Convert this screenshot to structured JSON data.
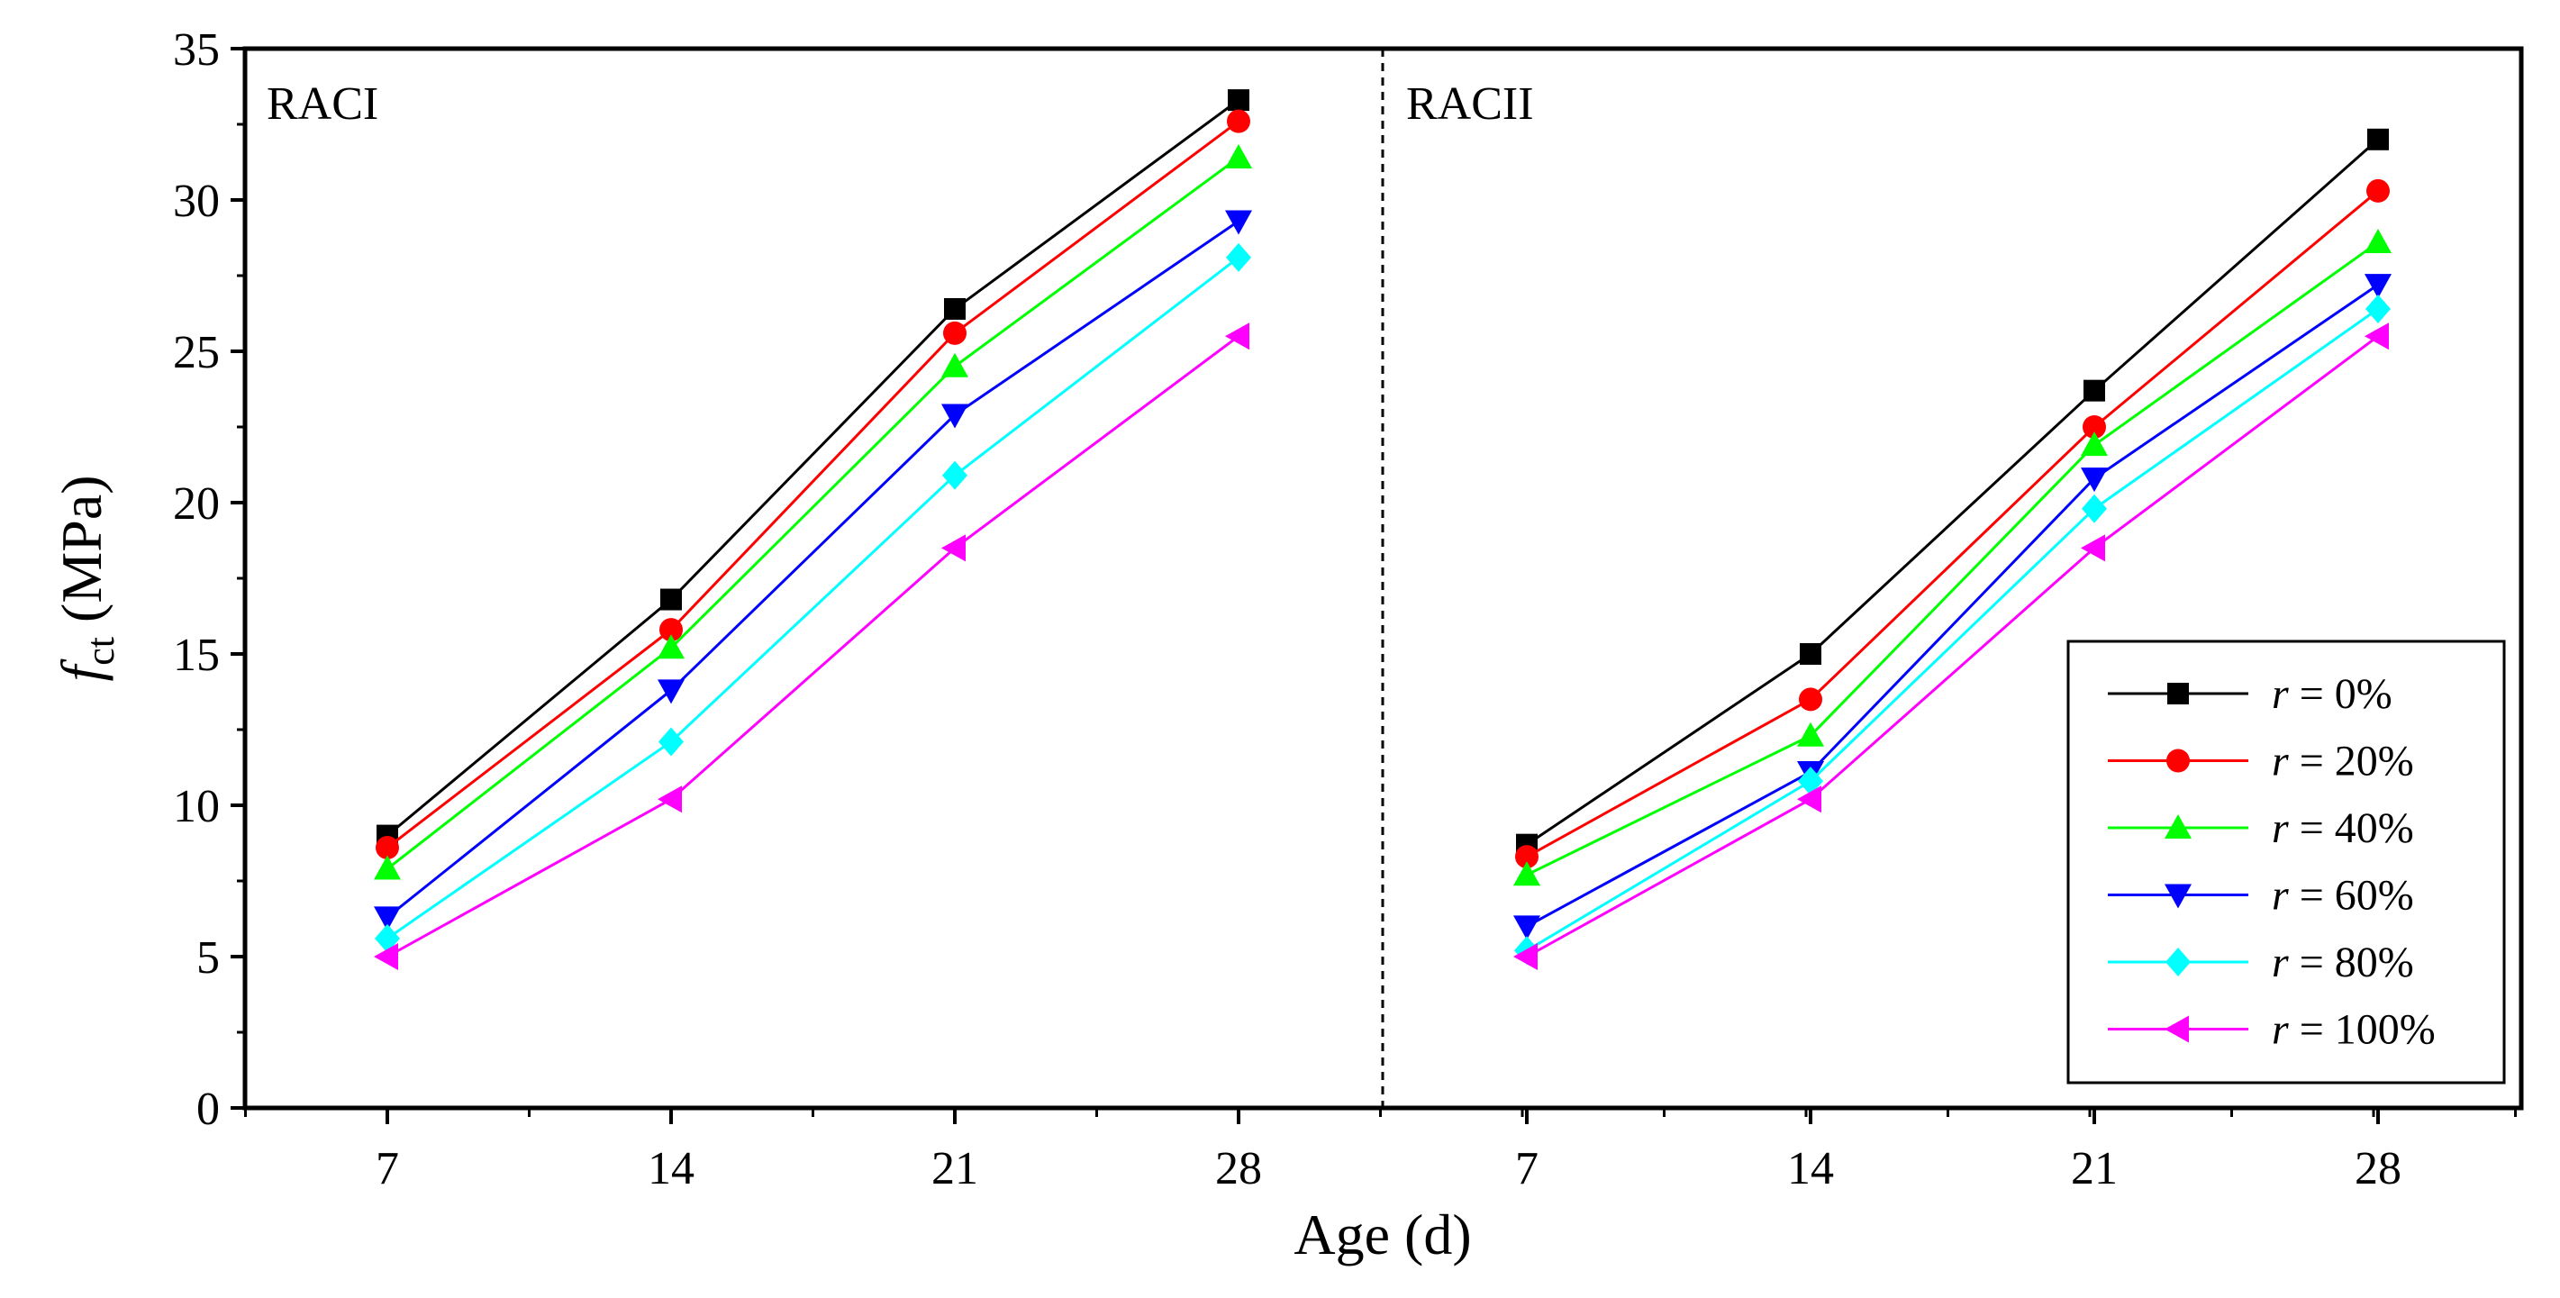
{
  "chart_data": {
    "type": "line",
    "ylabel_symbol": "f",
    "ylabel_subscript": "ct",
    "ylabel_unit": "(MPa)",
    "xlabel": "Age (d)",
    "ylim": [
      0,
      35
    ],
    "yticks": [
      0,
      5,
      10,
      15,
      20,
      25,
      30,
      35
    ],
    "categories": [
      7,
      14,
      21,
      28
    ],
    "legend_position": "bottom-right",
    "panels": [
      {
        "label": "RACI",
        "series": [
          {
            "name": "0%",
            "color": "#000000",
            "marker": "square",
            "values": [
              9.0,
              16.8,
              26.4,
              33.3
            ]
          },
          {
            "name": "20%",
            "color": "#ff0000",
            "marker": "circle",
            "values": [
              8.6,
              15.8,
              25.6,
              32.6
            ]
          },
          {
            "name": "40%",
            "color": "#00ff00",
            "marker": "triangle-up",
            "values": [
              7.9,
              15.2,
              24.5,
              31.4
            ]
          },
          {
            "name": "60%",
            "color": "#0000ff",
            "marker": "triangle-down",
            "values": [
              6.3,
              13.8,
              22.9,
              29.3
            ]
          },
          {
            "name": "80%",
            "color": "#00ffff",
            "marker": "diamond",
            "values": [
              5.6,
              12.1,
              20.9,
              28.1
            ]
          },
          {
            "name": "100%",
            "color": "#ff00ff",
            "marker": "triangle-left",
            "values": [
              5.0,
              10.2,
              18.5,
              25.5
            ]
          }
        ]
      },
      {
        "label": "RACII",
        "series": [
          {
            "name": "0%",
            "color": "#000000",
            "marker": "square",
            "values": [
              8.7,
              15.0,
              23.7,
              32.0
            ]
          },
          {
            "name": "20%",
            "color": "#ff0000",
            "marker": "circle",
            "values": [
              8.3,
              13.5,
              22.5,
              30.3
            ]
          },
          {
            "name": "40%",
            "color": "#00ff00",
            "marker": "triangle-up",
            "values": [
              7.7,
              12.3,
              21.9,
              28.6
            ]
          },
          {
            "name": "60%",
            "color": "#0000ff",
            "marker": "triangle-down",
            "values": [
              6.0,
              11.1,
              20.8,
              27.2
            ]
          },
          {
            "name": "80%",
            "color": "#00ffff",
            "marker": "diamond",
            "values": [
              5.2,
              10.8,
              19.8,
              26.4
            ]
          },
          {
            "name": "100%",
            "color": "#ff00ff",
            "marker": "triangle-left",
            "values": [
              5.0,
              10.2,
              18.5,
              25.5
            ]
          }
        ]
      }
    ],
    "legend": {
      "var": "r",
      "eq": " = ",
      "entries": [
        "0%",
        "20%",
        "40%",
        "60%",
        "80%",
        "100%"
      ]
    }
  }
}
